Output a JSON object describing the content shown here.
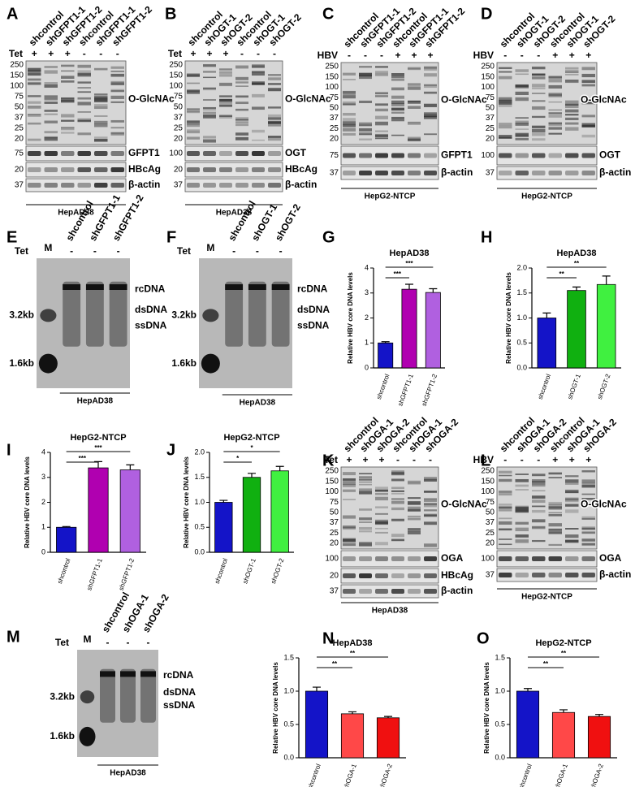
{
  "panels": {
    "blots": [
      {
        "letter": "A",
        "lanes": [
          "shcontrol",
          "shGFPT1-1",
          "shGFPT1-2",
          "shcontrol",
          "shGFPT1-1",
          "shGFPT1-2"
        ],
        "condition": "Tet",
        "signs": [
          "+",
          "+",
          "+",
          "-",
          "-",
          "-"
        ],
        "blocks": [
          {
            "label": "O-GlcNAc",
            "markers": [
              "250",
              "150",
              "100",
              "75",
              "50",
              "37",
              "25",
              "20"
            ]
          },
          {
            "label": "GFPT1",
            "markers": [
              "75"
            ]
          },
          {
            "label": "HBcAg",
            "markers": [
              "20"
            ]
          },
          {
            "label": "β-actin",
            "markers": [
              "37"
            ]
          }
        ],
        "cell": "HepAD38"
      },
      {
        "letter": "B",
        "lanes": [
          "shcontrol",
          "shOGT-1",
          "shOGT-2",
          "shcontrol",
          "shOGT-1",
          "shOGT-2"
        ],
        "condition": "Tet",
        "signs": [
          "+",
          "+",
          "+",
          "-",
          "-",
          "-"
        ],
        "blocks": [
          {
            "label": "O-GlcNAc",
            "markers": [
              "250",
              "150",
              "100",
              "75",
              "50",
              "37",
              "25",
              "20"
            ]
          },
          {
            "label": "OGT",
            "markers": [
              "100"
            ]
          },
          {
            "label": "HBcAg",
            "markers": [
              "20"
            ]
          },
          {
            "label": "β-actin",
            "markers": [
              "37"
            ]
          }
        ],
        "cell": "HepAD38"
      },
      {
        "letter": "C",
        "lanes": [
          "shcontrol",
          "shGFPT1-1",
          "shGFPT1-2",
          "shcontrol",
          "shGFPT1-1",
          "shGFPT1-2"
        ],
        "condition": "HBV",
        "signs": [
          "-",
          "-",
          "-",
          "+",
          "+",
          "+"
        ],
        "blocks": [
          {
            "label": "O-GlcNAc",
            "markers": [
              "250",
              "150",
              "100",
              "75",
              "50",
              "37",
              "25",
              "20"
            ]
          },
          {
            "label": "GFPT1",
            "markers": [
              "75"
            ]
          },
          {
            "label": "β-actin",
            "markers": [
              "37"
            ]
          }
        ],
        "cell": "HepG2-NTCP"
      },
      {
        "letter": "D",
        "lanes": [
          "shcontrol",
          "shOGT-1",
          "shOGT-2",
          "shcontrol",
          "shOGT-1",
          "shOGT-2"
        ],
        "condition": "HBV",
        "signs": [
          "-",
          "-",
          "-",
          "+",
          "+",
          "+"
        ],
        "blocks": [
          {
            "label": "O-GlcNAc",
            "markers": [
              "250",
              "150",
              "100",
              "75",
              "50",
              "37",
              "25",
              "20"
            ]
          },
          {
            "label": "OGT",
            "markers": [
              "100"
            ]
          },
          {
            "label": "β-actin",
            "markers": [
              "37"
            ]
          }
        ],
        "cell": "HepG2-NTCP"
      },
      {
        "letter": "K",
        "lanes": [
          "shcontrol",
          "shOGA-1",
          "shOGA-2",
          "shcontrol",
          "shOGA-1",
          "shOGA-2"
        ],
        "condition": "Tet",
        "signs": [
          "+",
          "+",
          "+",
          "-",
          "-",
          "-"
        ],
        "blocks": [
          {
            "label": "O-GlcNAc",
            "markers": [
              "250",
              "150",
              "100",
              "75",
              "50",
              "37",
              "25",
              "20"
            ]
          },
          {
            "label": "OGA",
            "markers": [
              "100"
            ]
          },
          {
            "label": "HBcAg",
            "markers": [
              "20"
            ]
          },
          {
            "label": "β-actin",
            "markers": [
              "37"
            ]
          }
        ],
        "cell": "HepAD38"
      },
      {
        "letter": "L",
        "lanes": [
          "shcontrol",
          "shOGA-1",
          "shOGA-2",
          "shcontrol",
          "shOGA-1",
          "shOGA-2"
        ],
        "condition": "HBV",
        "signs": [
          "-",
          "-",
          "-",
          "+",
          "+",
          "+"
        ],
        "blocks": [
          {
            "label": "O-GlcNAc",
            "markers": [
              "250",
              "150",
              "100",
              "75",
              "50",
              "37",
              "25",
              "20"
            ]
          },
          {
            "label": "OGA",
            "markers": [
              "100"
            ]
          },
          {
            "label": "β-actin",
            "markers": [
              "37"
            ]
          }
        ],
        "cell": "HepG2-NTCP"
      }
    ],
    "southerns": [
      {
        "letter": "E",
        "marker_lane": "M",
        "lanes": [
          "shcontrol",
          "shGFPT1-1",
          "shGFPT1-2"
        ],
        "condition": "Tet",
        "signs": [
          "-",
          "-",
          "-"
        ],
        "size_markers": [
          "3.2kb",
          "1.6kb"
        ],
        "forms": [
          "rcDNA",
          "dsDNA",
          "ssDNA"
        ],
        "cell": "HepAD38"
      },
      {
        "letter": "F",
        "marker_lane": "M",
        "lanes": [
          "shcontrol",
          "shOGT-1",
          "shOGT-2"
        ],
        "condition": "Tet",
        "signs": [
          "-",
          "-",
          "-"
        ],
        "size_markers": [
          "3.2kb",
          "1.6kb"
        ],
        "forms": [
          "rcDNA",
          "dsDNA",
          "ssDNA"
        ],
        "cell": "HepAD38"
      },
      {
        "letter": "M",
        "marker_lane": "M",
        "lanes": [
          "shcontrol",
          "shOGA-1",
          "shOGA-2"
        ],
        "condition": "Tet",
        "signs": [
          "-",
          "-",
          "-"
        ],
        "size_markers": [
          "3.2kb",
          "1.6kb"
        ],
        "forms": [
          "rcDNA",
          "dsDNA",
          "ssDNA"
        ],
        "cell": "HepAD38"
      }
    ]
  },
  "chart_data": [
    {
      "type": "bar",
      "panel": "G",
      "title": "HepAD38",
      "y_label": "Relative HBV core DNA levels",
      "categories": [
        "shcontrol",
        "shGFPT1-1",
        "shGFPT1-2"
      ],
      "values": [
        1.0,
        3.15,
        3.02
      ],
      "errors": [
        0.05,
        0.2,
        0.15
      ],
      "colors": [
        "#1414c8",
        "#b000b0",
        "#b060e0"
      ],
      "ylim": [
        0,
        4
      ],
      "yticks": [
        0,
        1,
        2,
        3,
        4
      ],
      "significance": [
        "***",
        "***"
      ]
    },
    {
      "type": "bar",
      "panel": "H",
      "title": "HepAD38",
      "y_label": "Relative HBV core DNA levels",
      "categories": [
        "shcontrol",
        "shOGT-1",
        "shOGT-2"
      ],
      "values": [
        1.0,
        1.55,
        1.67
      ],
      "errors": [
        0.1,
        0.07,
        0.17
      ],
      "colors": [
        "#1414c8",
        "#10b010",
        "#40f040"
      ],
      "ylim": [
        0,
        2
      ],
      "yticks": [
        {
          "value": 0,
          "label": "0.0"
        },
        {
          "value": 0.5,
          "label": "0.5"
        },
        {
          "value": 1,
          "label": "1.0"
        },
        {
          "value": 1.5,
          "label": "1.5"
        },
        {
          "value": 2,
          "label": "2.0"
        }
      ],
      "significance": [
        "**",
        "**"
      ]
    },
    {
      "type": "bar",
      "panel": "I",
      "title": "HepG2-NTCP",
      "y_label": "Relative HBV core DNA levels",
      "categories": [
        "shcontrol",
        "shGFPT1-1",
        "shGFPT1-2"
      ],
      "values": [
        1.0,
        3.38,
        3.3
      ],
      "errors": [
        0.03,
        0.25,
        0.2
      ],
      "colors": [
        "#1414c8",
        "#b000b0",
        "#b060e0"
      ],
      "ylim": [
        0,
        4
      ],
      "yticks": [
        0,
        1,
        2,
        3,
        4
      ],
      "significance": [
        "***",
        "***"
      ]
    },
    {
      "type": "bar",
      "panel": "J",
      "title": "HepG2-NTCP",
      "y_label": "Relative HBV core DNA levels",
      "categories": [
        "shcontrol",
        "shOGT-1",
        "shOGT-2"
      ],
      "values": [
        1.0,
        1.5,
        1.63
      ],
      "errors": [
        0.04,
        0.08,
        0.09
      ],
      "colors": [
        "#1414c8",
        "#10b010",
        "#40f040"
      ],
      "ylim": [
        0,
        2
      ],
      "yticks": [
        {
          "value": 0,
          "label": "0.0"
        },
        {
          "value": 0.5,
          "label": "0.5"
        },
        {
          "value": 1,
          "label": "1.0"
        },
        {
          "value": 1.5,
          "label": "1.5"
        },
        {
          "value": 2,
          "label": "2.0"
        }
      ],
      "significance": [
        "*",
        "*"
      ]
    },
    {
      "type": "bar",
      "panel": "N",
      "title": "HepAD38",
      "y_label": "Relative HBV core DNA levels",
      "categories": [
        "shcontrol",
        "shOGA-1",
        "shOGA-2"
      ],
      "values": [
        1.0,
        0.66,
        0.6
      ],
      "errors": [
        0.06,
        0.03,
        0.02
      ],
      "colors": [
        "#1414c8",
        "#ff4848",
        "#f01010"
      ],
      "ylim": [
        0,
        1.5
      ],
      "yticks": [
        {
          "value": 0,
          "label": "0.0"
        },
        {
          "value": 0.5,
          "label": "0.5"
        },
        {
          "value": 1,
          "label": "1.0"
        },
        {
          "value": 1.5,
          "label": "1.5"
        }
      ],
      "significance": [
        "**",
        "**"
      ]
    },
    {
      "type": "bar",
      "panel": "O",
      "title": "HepG2-NTCP",
      "y_label": "Relative HBV core DNA levels",
      "categories": [
        "shcontrol",
        "shOGA-1",
        "shOGA-2"
      ],
      "values": [
        1.0,
        0.68,
        0.62
      ],
      "errors": [
        0.04,
        0.04,
        0.03
      ],
      "colors": [
        "#1414c8",
        "#ff4848",
        "#f01010"
      ],
      "ylim": [
        0,
        1.5
      ],
      "yticks": [
        {
          "value": 0,
          "label": "0.0"
        },
        {
          "value": 0.5,
          "label": "0.5"
        },
        {
          "value": 1,
          "label": "1.0"
        },
        {
          "value": 1.5,
          "label": "1.5"
        }
      ],
      "significance": [
        "**",
        "**"
      ]
    }
  ]
}
